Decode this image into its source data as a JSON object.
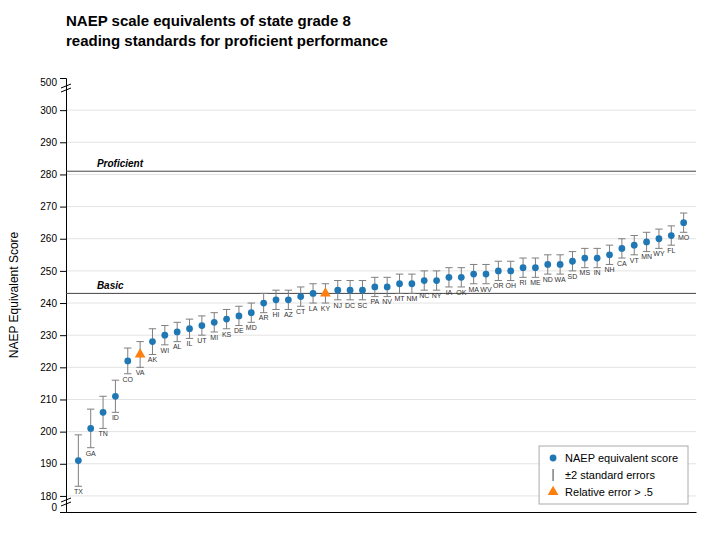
{
  "chart_data": {
    "type": "scatter",
    "title": "NAEP scale equivalents of state grade 8",
    "subtitle": "reading standards for proficient performance",
    "y_label": "NAEP Equivalent Score",
    "categories": [
      "TX",
      "GA",
      "TN",
      "ID",
      "CO",
      "VA",
      "AK",
      "WI",
      "AL",
      "IL",
      "UT",
      "MI",
      "KS",
      "DE",
      "MD",
      "AR",
      "HI",
      "AZ",
      "CT",
      "LA",
      "KY",
      "NJ",
      "DC",
      "SC",
      "PA",
      "NV",
      "MT",
      "NM",
      "NC",
      "NY",
      "IA",
      "OK",
      "MA",
      "WV",
      "OR",
      "OH",
      "RI",
      "ME",
      "ND",
      "WA",
      "SD",
      "MS",
      "IN",
      "NH",
      "CA",
      "VT",
      "MN",
      "WY",
      "FL",
      "MO"
    ],
    "series": [
      {
        "name": "NAEP equivalent score",
        "marker": "circle",
        "values": [
          191,
          201,
          206,
          211,
          222,
          null,
          228,
          230,
          231,
          232,
          233,
          234,
          235,
          236,
          237,
          240,
          241,
          241,
          242,
          243,
          null,
          244,
          244,
          244,
          245,
          245,
          246,
          246,
          247,
          247,
          248,
          248,
          249,
          249,
          250,
          250,
          251,
          251,
          252,
          252,
          253,
          254,
          254,
          255,
          257,
          258,
          259,
          260,
          261,
          265
        ],
        "errors": [
          8,
          6,
          5,
          5,
          4,
          null,
          4,
          3,
          3,
          3,
          3,
          3,
          3,
          3,
          3,
          3,
          3,
          3,
          3,
          3,
          null,
          3,
          3,
          3,
          3,
          3,
          3,
          3,
          3,
          3,
          3,
          3,
          3,
          3,
          3,
          3,
          3,
          3,
          3,
          3,
          3,
          3,
          3,
          3,
          3,
          3,
          3,
          3,
          3,
          3
        ]
      },
      {
        "name": "Relative error > .5",
        "marker": "triangle",
        "values": [
          null,
          null,
          null,
          null,
          null,
          224,
          null,
          null,
          null,
          null,
          null,
          null,
          null,
          null,
          null,
          null,
          null,
          null,
          null,
          null,
          243,
          null,
          null,
          null,
          null,
          null,
          null,
          null,
          null,
          null,
          null,
          null,
          null,
          null,
          null,
          null,
          null,
          null,
          null,
          null,
          null,
          null,
          null,
          null,
          null,
          null,
          null,
          null,
          null,
          null
        ],
        "errors": [
          null,
          null,
          null,
          null,
          null,
          4,
          null,
          null,
          null,
          null,
          null,
          null,
          null,
          null,
          null,
          null,
          null,
          null,
          null,
          null,
          3,
          null,
          null,
          null,
          null,
          null,
          null,
          null,
          null,
          null,
          null,
          null,
          null,
          null,
          null,
          null,
          null,
          null,
          null,
          null,
          null,
          null,
          null,
          null,
          null,
          null,
          null,
          null,
          null,
          null
        ]
      }
    ],
    "error_label": "±2  standard errors",
    "annotations": [
      {
        "text": "Proficient",
        "y": 281
      },
      {
        "text": "Basic",
        "y": 243
      }
    ],
    "axis_break_labels": [
      "0",
      "500"
    ],
    "ylim": [
      175,
      310
    ],
    "yticks": [
      180,
      190,
      200,
      210,
      220,
      230,
      240,
      250,
      260,
      270,
      280,
      290,
      300
    ],
    "grid": true,
    "legend": "lower-right",
    "tick_labels": "y"
  }
}
